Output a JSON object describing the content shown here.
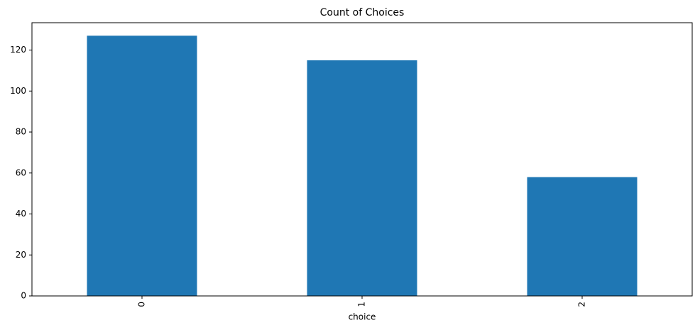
{
  "chart_data": {
    "type": "bar",
    "title": "Count of Choices",
    "x_label": "choice",
    "categories": [
      "0",
      "1",
      "2"
    ],
    "values": [
      127,
      115,
      58
    ],
    "color": "#1f77b4",
    "ylim": [
      0,
      133.35
    ],
    "yticks": [
      0,
      20,
      40,
      60,
      80,
      100,
      120
    ],
    "grid": false
  }
}
